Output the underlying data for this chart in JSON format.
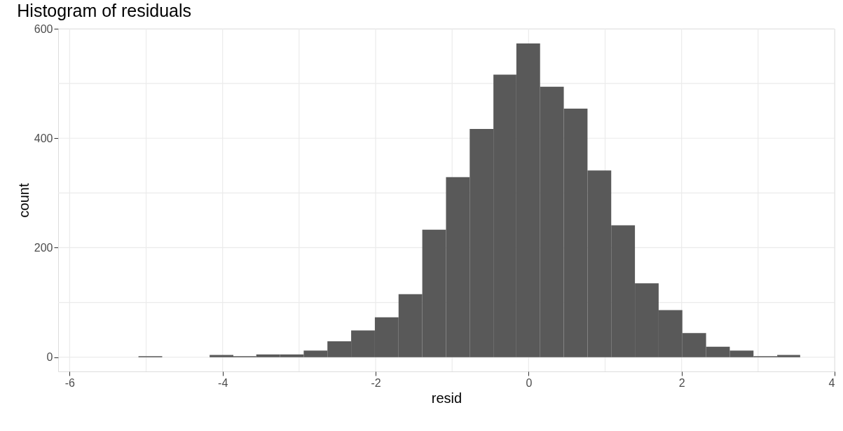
{
  "chart_data": {
    "type": "histogram",
    "title": "Histogram of residuals",
    "xlabel": "resid",
    "ylabel": "count",
    "bins": [
      -5.1,
      -4.79,
      -4.17,
      -3.86,
      -3.56,
      -3.25,
      -2.94,
      -2.63,
      -2.32,
      -2.01,
      -1.7,
      -1.39,
      -1.08,
      -0.77,
      -0.46,
      -0.16,
      0.15,
      0.46,
      0.77,
      1.08,
      1.39,
      1.7,
      2.01,
      2.32,
      2.63,
      2.94,
      3.25,
      3.55
    ],
    "values": [
      2,
      0,
      4,
      2,
      5,
      5,
      12,
      29,
      49,
      73,
      115,
      233,
      329,
      417,
      516,
      573,
      494,
      454,
      341,
      241,
      135,
      86,
      44,
      19,
      12,
      2,
      4
    ],
    "color": "#595959",
    "xlim": [
      -6.15,
      4.0
    ],
    "ylim": [
      -26,
      600
    ],
    "xticks": [
      -6,
      {
        "value": -5,
        "label": null
      },
      -4,
      {
        "value": -3,
        "label": null
      },
      -2,
      {
        "value": -1,
        "label": null
      },
      0,
      {
        "value": 1,
        "label": null
      },
      2,
      {
        "value": 3,
        "label": null
      },
      4
    ],
    "yticks": [
      0,
      {
        "value": 100,
        "label": null
      },
      200,
      {
        "value": 300,
        "label": null
      },
      400,
      {
        "value": 500,
        "label": null
      },
      600
    ],
    "grid": true
  }
}
